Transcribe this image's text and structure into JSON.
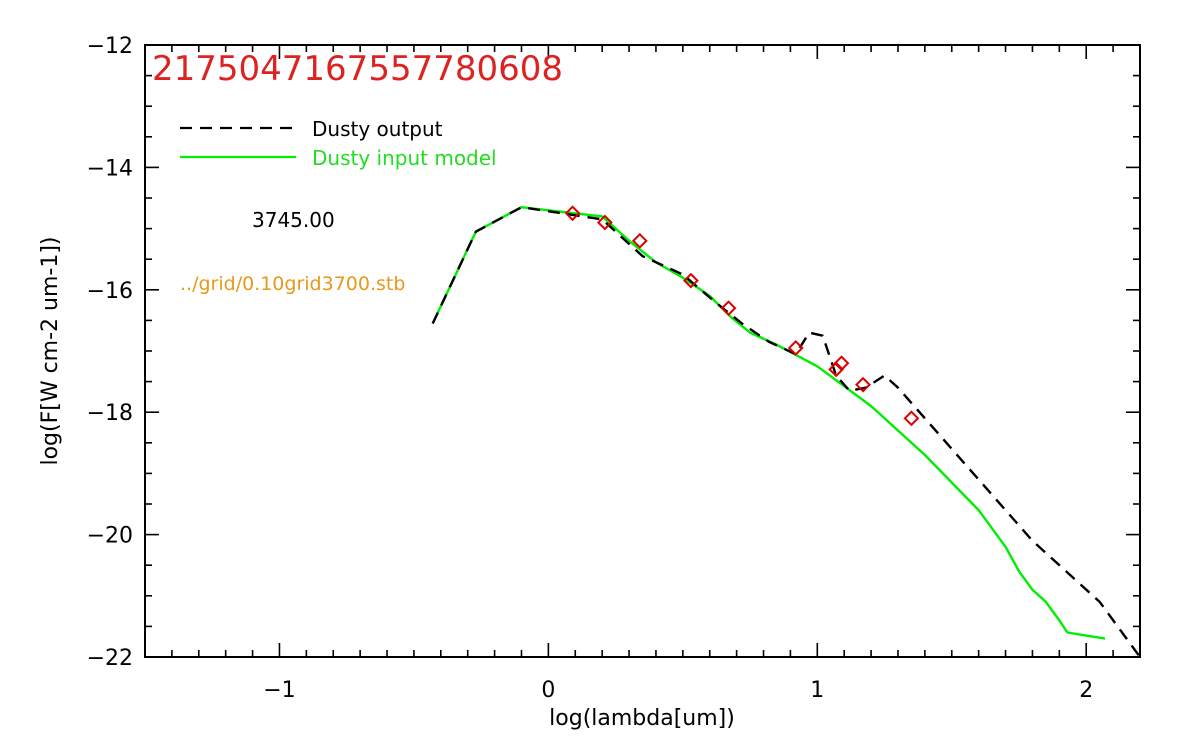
{
  "chart_data": {
    "type": "line",
    "title": "2175047167557780608",
    "xlabel": "log(lambda[um])",
    "ylabel": "log(F[W cm-2 um-1])",
    "xlim": [
      -1.5,
      2.2
    ],
    "ylim": [
      -22,
      -12
    ],
    "x_major_ticks": [
      -1,
      0,
      1,
      2
    ],
    "x_tick_labels": [
      "−1",
      "0",
      "1",
      "2"
    ],
    "y_major_ticks": [
      -22,
      -20,
      -18,
      -16,
      -14,
      -12
    ],
    "y_tick_labels": [
      "−22",
      "−20",
      "−18",
      "−16",
      "−14",
      "−12"
    ],
    "grid": false,
    "legend_position": "top-left",
    "series": [
      {
        "name": "Dusty output",
        "style": "dashed",
        "color": "#000000",
        "x": [
          -0.43,
          -0.27,
          -0.1,
          0.2,
          0.35,
          0.5,
          0.62,
          0.72,
          0.82,
          0.92,
          0.97,
          1.02,
          1.07,
          1.12,
          1.18,
          1.25,
          1.3,
          1.4,
          1.6,
          1.8,
          2.05,
          2.2
        ],
        "y": [
          -16.55,
          -15.05,
          -14.65,
          -14.85,
          -15.45,
          -15.75,
          -16.2,
          -16.55,
          -16.85,
          -17.05,
          -16.7,
          -16.75,
          -17.4,
          -17.65,
          -17.6,
          -17.4,
          -17.6,
          -18.1,
          -19.1,
          -20.1,
          -21.1,
          -22.0
        ]
      },
      {
        "name": "Dusty input model",
        "style": "solid",
        "color": "#00ee00",
        "x": [
          -0.43,
          -0.27,
          -0.1,
          0.2,
          0.3,
          0.4,
          0.5,
          0.6,
          0.68,
          0.75,
          0.85,
          1.0,
          1.2,
          1.4,
          1.6,
          1.7,
          1.75,
          1.8,
          1.85,
          1.9,
          1.93,
          2.07
        ],
        "y": [
          -16.55,
          -15.05,
          -14.65,
          -14.8,
          -15.2,
          -15.55,
          -15.8,
          -16.1,
          -16.45,
          -16.7,
          -16.9,
          -17.25,
          -17.9,
          -18.7,
          -19.6,
          -20.2,
          -20.6,
          -20.9,
          -21.1,
          -21.4,
          -21.6,
          -21.7
        ]
      }
    ],
    "markers": {
      "style": "diamond",
      "color": "#dd0000",
      "x": [
        0.09,
        0.21,
        0.34,
        0.53,
        0.67,
        0.92,
        1.07,
        1.09,
        1.17,
        1.35
      ],
      "y": [
        -14.75,
        -14.9,
        -15.2,
        -15.85,
        -16.3,
        -16.95,
        -17.3,
        -17.2,
        -17.55,
        -18.1
      ]
    },
    "annotations": [
      {
        "text": "3745.00",
        "color": "#000000"
      },
      {
        "text": "../grid/0.10grid3700.stb",
        "color": "#e69a1a"
      }
    ]
  }
}
